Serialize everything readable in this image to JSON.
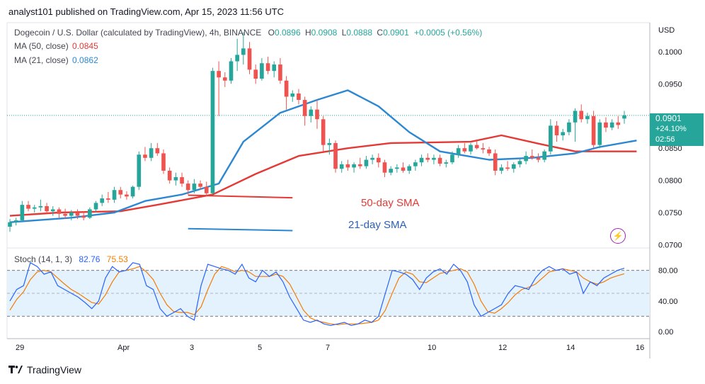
{
  "header": {
    "publish_line": "analyst101 published on TradingView.com, Apr 15, 2023 11:56 UTC"
  },
  "legend": {
    "symbol": "Dogecoin / U.S. Dollar (calculated by TradingView), 4h, BINANCE",
    "ohlc": [
      {
        "k": "O",
        "v": "0.0896"
      },
      {
        "k": "H",
        "v": "0.0908"
      },
      {
        "k": "L",
        "v": "0.0888"
      },
      {
        "k": "C",
        "v": "0.0901"
      }
    ],
    "change": "+0.0005 (+0.56%)",
    "ma50_label": "MA (50, close)",
    "ma50_value": "0.0845",
    "ma21_label": "MA (21, close)",
    "ma21_value": "0.0862",
    "stoch_label": "Stoch (14, 1, 3)",
    "stoch_k": "82.76",
    "stoch_d": "75.53"
  },
  "colors": {
    "up": "#26a69a",
    "down": "#ef5350",
    "ma50": "#e53935",
    "ma21": "#2c87d2",
    "stoch_k": "#2962ff",
    "stoch_d": "#f57c00",
    "band": "#e3f2fd"
  },
  "price_axis": {
    "currency": "USD",
    "ticks": [
      "0.1000",
      "0.0950",
      "0.0850",
      "0.0800",
      "0.0750",
      "0.0700"
    ],
    "last_price": "0.0901",
    "last_change_pct": "+24.10%",
    "countdown": "02:56"
  },
  "stoch_axis": {
    "ticks": [
      "80.00",
      "40.00",
      "0.00"
    ]
  },
  "time_axis": {
    "ticks": [
      "29",
      "Apr",
      "3",
      "5",
      "7",
      "10",
      "12",
      "14",
      "16"
    ]
  },
  "annotations": {
    "sma50": "50-day SMA",
    "sma21": "21-day SMA"
  },
  "footer": {
    "brand": "TradingView"
  },
  "chart_data": {
    "type": "candlestick",
    "title": "Dogecoin / U.S. Dollar (calculated by TradingView), 4h, BINANCE",
    "ylim": [
      0.0695,
      0.1045
    ],
    "candles": [
      [
        0.0728,
        0.074,
        0.072,
        0.0735
      ],
      [
        0.0735,
        0.0742,
        0.073,
        0.0738
      ],
      [
        0.0738,
        0.0768,
        0.0735,
        0.0762
      ],
      [
        0.0762,
        0.0768,
        0.0752,
        0.0756
      ],
      [
        0.0756,
        0.0762,
        0.075,
        0.0758
      ],
      [
        0.0758,
        0.077,
        0.0752,
        0.076
      ],
      [
        0.076,
        0.0765,
        0.0748,
        0.0752
      ],
      [
        0.0752,
        0.076,
        0.0745,
        0.0755
      ],
      [
        0.0755,
        0.0758,
        0.0742,
        0.0748
      ],
      [
        0.0748,
        0.0756,
        0.074,
        0.0745
      ],
      [
        0.0745,
        0.0754,
        0.0738,
        0.075
      ],
      [
        0.075,
        0.0755,
        0.074,
        0.0745
      ],
      [
        0.0745,
        0.0752,
        0.0738,
        0.0742
      ],
      [
        0.0742,
        0.0758,
        0.074,
        0.0755
      ],
      [
        0.0755,
        0.0768,
        0.075,
        0.0765
      ],
      [
        0.0765,
        0.0778,
        0.076,
        0.0772
      ],
      [
        0.0772,
        0.0782,
        0.0765,
        0.077
      ],
      [
        0.077,
        0.079,
        0.0765,
        0.0785
      ],
      [
        0.0785,
        0.079,
        0.0772,
        0.0778
      ],
      [
        0.0778,
        0.0783,
        0.077,
        0.0775
      ],
      [
        0.0775,
        0.0792,
        0.0772,
        0.079
      ],
      [
        0.079,
        0.0845,
        0.0785,
        0.084
      ],
      [
        0.084,
        0.0852,
        0.083,
        0.0835
      ],
      [
        0.0835,
        0.0858,
        0.083,
        0.085
      ],
      [
        0.085,
        0.0858,
        0.0838,
        0.0842
      ],
      [
        0.0842,
        0.0848,
        0.081,
        0.0815
      ],
      [
        0.0815,
        0.082,
        0.0795,
        0.08
      ],
      [
        0.08,
        0.0812,
        0.0792,
        0.0805
      ],
      [
        0.0805,
        0.0812,
        0.079,
        0.0795
      ],
      [
        0.0795,
        0.08,
        0.0778,
        0.0785
      ],
      [
        0.0785,
        0.0802,
        0.078,
        0.0795
      ],
      [
        0.0795,
        0.08,
        0.0785,
        0.079
      ],
      [
        0.079,
        0.0798,
        0.0775,
        0.078
      ],
      [
        0.078,
        0.0975,
        0.0778,
        0.097
      ],
      [
        0.097,
        0.0985,
        0.09,
        0.096
      ],
      [
        0.096,
        0.0968,
        0.0945,
        0.0955
      ],
      [
        0.0955,
        0.099,
        0.095,
        0.0985
      ],
      [
        0.0985,
        0.102,
        0.097,
        0.0995
      ],
      [
        0.0995,
        0.103,
        0.098,
        0.1005
      ],
      [
        0.1005,
        0.1015,
        0.0965,
        0.0972
      ],
      [
        0.0972,
        0.098,
        0.095,
        0.0958
      ],
      [
        0.0958,
        0.099,
        0.0955,
        0.0982
      ],
      [
        0.0982,
        0.0992,
        0.0965,
        0.097
      ],
      [
        0.097,
        0.0985,
        0.096,
        0.098
      ],
      [
        0.098,
        0.099,
        0.095,
        0.0955
      ],
      [
        0.0955,
        0.0962,
        0.091,
        0.093
      ],
      [
        0.093,
        0.094,
        0.0922,
        0.0935
      ],
      [
        0.0935,
        0.0942,
        0.0918,
        0.0925
      ],
      [
        0.0925,
        0.093,
        0.0885,
        0.09
      ],
      [
        0.09,
        0.0915,
        0.089,
        0.091
      ],
      [
        0.091,
        0.0925,
        0.088,
        0.0895
      ],
      [
        0.0895,
        0.09,
        0.0845,
        0.0855
      ],
      [
        0.0855,
        0.0865,
        0.084,
        0.0858
      ],
      [
        0.0858,
        0.0862,
        0.0812,
        0.0818
      ],
      [
        0.0818,
        0.083,
        0.0812,
        0.0825
      ],
      [
        0.0825,
        0.0832,
        0.0815,
        0.082
      ],
      [
        0.082,
        0.0828,
        0.0812,
        0.0825
      ],
      [
        0.0825,
        0.0835,
        0.0818,
        0.0822
      ],
      [
        0.0822,
        0.0838,
        0.0818,
        0.0832
      ],
      [
        0.0832,
        0.084,
        0.0825,
        0.0835
      ],
      [
        0.0835,
        0.0842,
        0.082,
        0.0828
      ],
      [
        0.0828,
        0.0832,
        0.0805,
        0.0812
      ],
      [
        0.0812,
        0.0822,
        0.0808,
        0.0818
      ],
      [
        0.0818,
        0.0825,
        0.0812,
        0.082
      ],
      [
        0.082,
        0.0828,
        0.0812,
        0.0815
      ],
      [
        0.0815,
        0.0825,
        0.081,
        0.0822
      ],
      [
        0.0822,
        0.0832,
        0.0815,
        0.0828
      ],
      [
        0.0828,
        0.084,
        0.0822,
        0.0835
      ],
      [
        0.0835,
        0.0842,
        0.0828,
        0.0832
      ],
      [
        0.0832,
        0.084,
        0.0825,
        0.0835
      ],
      [
        0.0835,
        0.084,
        0.0822,
        0.0826
      ],
      [
        0.0826,
        0.0832,
        0.082,
        0.0828
      ],
      [
        0.0828,
        0.0845,
        0.0825,
        0.084
      ],
      [
        0.084,
        0.0855,
        0.0835,
        0.085
      ],
      [
        0.085,
        0.0858,
        0.0842,
        0.0845
      ],
      [
        0.0845,
        0.0858,
        0.084,
        0.0855
      ],
      [
        0.0855,
        0.0862,
        0.0848,
        0.085
      ],
      [
        0.085,
        0.0858,
        0.0842,
        0.0848
      ],
      [
        0.0848,
        0.0852,
        0.0838,
        0.0842
      ],
      [
        0.0842,
        0.0848,
        0.0808,
        0.0815
      ],
      [
        0.0815,
        0.0825,
        0.081,
        0.082
      ],
      [
        0.082,
        0.083,
        0.0815,
        0.0818
      ],
      [
        0.0818,
        0.0828,
        0.0812,
        0.0825
      ],
      [
        0.0825,
        0.0835,
        0.082,
        0.083
      ],
      [
        0.083,
        0.0845,
        0.0825,
        0.0838
      ],
      [
        0.0838,
        0.0848,
        0.0832,
        0.0835
      ],
      [
        0.0835,
        0.0842,
        0.0828,
        0.0832
      ],
      [
        0.0832,
        0.0848,
        0.0828,
        0.0845
      ],
      [
        0.0845,
        0.0895,
        0.084,
        0.0885
      ],
      [
        0.0885,
        0.0892,
        0.086,
        0.087
      ],
      [
        0.087,
        0.088,
        0.0862,
        0.0875
      ],
      [
        0.0875,
        0.0895,
        0.087,
        0.089
      ],
      [
        0.089,
        0.0912,
        0.086,
        0.0908
      ],
      [
        0.0908,
        0.0918,
        0.089,
        0.0895
      ],
      [
        0.0895,
        0.0905,
        0.0888,
        0.09
      ],
      [
        0.09,
        0.0908,
        0.085,
        0.0855
      ],
      [
        0.0855,
        0.0895,
        0.085,
        0.089
      ],
      [
        0.089,
        0.0898,
        0.0875,
        0.0882
      ],
      [
        0.0882,
        0.0895,
        0.0878,
        0.089
      ],
      [
        0.089,
        0.09,
        0.088,
        0.0886
      ],
      [
        0.0896,
        0.0908,
        0.0888,
        0.0901
      ]
    ],
    "ma50": [
      [
        0,
        0.0745
      ],
      [
        8,
        0.075
      ],
      [
        18,
        0.0752
      ],
      [
        24,
        0.0762
      ],
      [
        33,
        0.0778
      ],
      [
        40,
        0.081
      ],
      [
        47,
        0.0838
      ],
      [
        55,
        0.085
      ],
      [
        62,
        0.0858
      ],
      [
        75,
        0.086
      ],
      [
        80,
        0.087
      ],
      [
        87,
        0.0855
      ],
      [
        92,
        0.0845
      ],
      [
        102,
        0.0845
      ]
    ],
    "ma21": [
      [
        0,
        0.0735
      ],
      [
        10,
        0.0742
      ],
      [
        17,
        0.075
      ],
      [
        22,
        0.0768
      ],
      [
        28,
        0.0778
      ],
      [
        34,
        0.0795
      ],
      [
        38,
        0.086
      ],
      [
        44,
        0.0905
      ],
      [
        50,
        0.0925
      ],
      [
        55,
        0.094
      ],
      [
        60,
        0.0915
      ],
      [
        65,
        0.0875
      ],
      [
        70,
        0.0845
      ],
      [
        78,
        0.0832
      ],
      [
        85,
        0.0835
      ],
      [
        92,
        0.0842
      ],
      [
        96,
        0.0852
      ],
      [
        102,
        0.0862
      ]
    ],
    "support_lines": [
      {
        "color": "ma50",
        "x": [
          29,
          46
        ],
        "y": [
          0.0777,
          0.0773
        ]
      },
      {
        "color": "ma21",
        "x": [
          29,
          46
        ],
        "y": [
          0.0725,
          0.0722
        ]
      }
    ],
    "stoch": {
      "ylim": [
        0,
        100
      ],
      "bands": [
        20,
        80
      ],
      "k": [
        40,
        55,
        60,
        90,
        85,
        75,
        78,
        60,
        55,
        50,
        45,
        38,
        30,
        40,
        70,
        85,
        78,
        80,
        90,
        88,
        60,
        55,
        30,
        20,
        25,
        30,
        20,
        15,
        60,
        88,
        85,
        82,
        80,
        75,
        88,
        70,
        65,
        80,
        72,
        78,
        65,
        45,
        30,
        15,
        12,
        15,
        10,
        8,
        10,
        12,
        8,
        10,
        15,
        12,
        20,
        50,
        80,
        78,
        75,
        68,
        55,
        70,
        78,
        82,
        75,
        88,
        80,
        65,
        35,
        20,
        25,
        30,
        35,
        50,
        60,
        58,
        55,
        70,
        80,
        85,
        80,
        82,
        75,
        78,
        50,
        65,
        60,
        70,
        75,
        80,
        82.76
      ],
      "d": [
        28,
        42,
        52,
        68,
        78,
        80,
        78,
        70,
        62,
        55,
        50,
        44,
        38,
        36,
        48,
        65,
        78,
        80,
        82,
        85,
        78,
        68,
        50,
        35,
        26,
        25,
        25,
        22,
        32,
        55,
        75,
        85,
        82,
        78,
        80,
        78,
        72,
        72,
        72,
        75,
        72,
        62,
        45,
        28,
        18,
        14,
        12,
        10,
        9,
        10,
        10,
        10,
        11,
        12,
        15,
        28,
        50,
        70,
        78,
        75,
        65,
        64,
        70,
        76,
        78,
        80,
        82,
        78,
        62,
        40,
        26,
        24,
        30,
        38,
        48,
        55,
        58,
        62,
        70,
        78,
        80,
        82,
        80,
        78,
        70,
        65,
        62,
        65,
        70,
        73,
        75.53
      ]
    }
  }
}
